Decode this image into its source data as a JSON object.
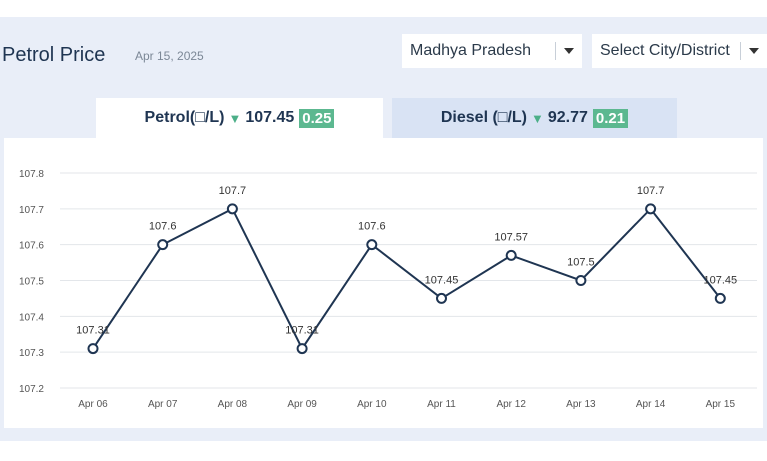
{
  "header": {
    "title": "Petrol Price",
    "date": "Apr 15, 2025",
    "state_select": "Madhya Pradesh",
    "city_select": "Select City/District"
  },
  "tabs": [
    {
      "label": "Petrol(□/L)",
      "price": "107.45",
      "change": "0.25",
      "active": true
    },
    {
      "label": "Diesel (□/L)",
      "price": "92.77",
      "change": "0.21",
      "active": false
    }
  ],
  "colors": {
    "line": "#1f3552",
    "change_badge": "#5cb890",
    "down_arrow": "#4caf88"
  },
  "chart_data": {
    "type": "line",
    "categories": [
      "Apr 06",
      "Apr 07",
      "Apr 08",
      "Apr 09",
      "Apr 10",
      "Apr 11",
      "Apr 12",
      "Apr 13",
      "Apr 14",
      "Apr 15"
    ],
    "values": [
      107.31,
      107.6,
      107.7,
      107.31,
      107.6,
      107.45,
      107.57,
      107.5,
      107.7,
      107.45
    ],
    "point_labels": [
      "107.31",
      "107.6",
      "107.7",
      "107.31",
      "107.6",
      "107.45",
      "107.57",
      "107.5",
      "107.7",
      "107.45"
    ],
    "y_ticks": [
      "107.8",
      "107.7",
      "107.6",
      "107.5",
      "107.4",
      "107.3",
      "107.2"
    ],
    "ylim": [
      107.2,
      107.8
    ],
    "grid": true,
    "title": "",
    "xlabel": "",
    "ylabel": ""
  }
}
